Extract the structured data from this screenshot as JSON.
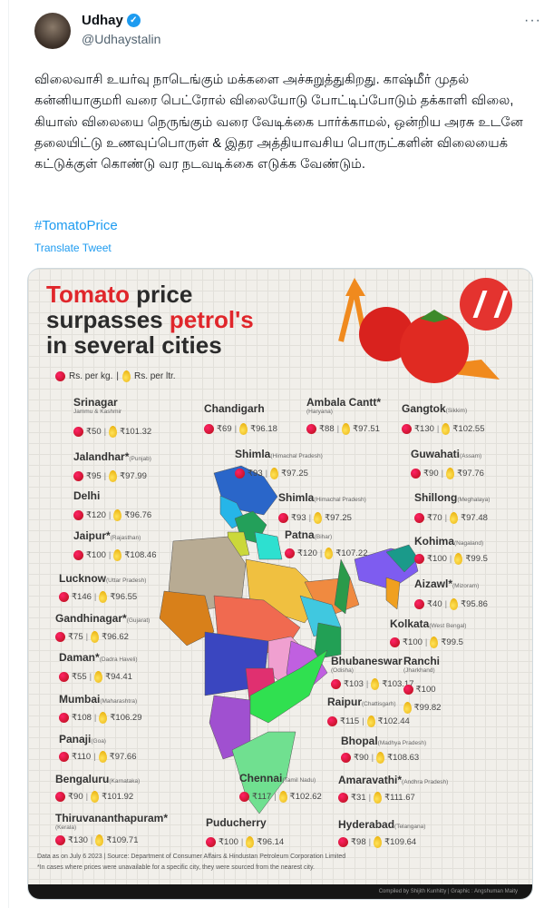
{
  "tweet": {
    "author_name": "Udhay",
    "handle": "@Udhaystalin",
    "text": "விலைவாசி உயர்வு நாடெங்கும் மக்களை அச்சுறுத்துகிறது. காஷ்மீர் முதல் கன்னியாகுமரி வரை பெட்ரோல் விலையோடு போட்டிப்போடும் தக்காளி விலை, கியாஸ் விலையை நெருங்கும் வரை வேடிக்கை பார்க்காமல், ஒன்றிய அரசு உடனே தலையிட்டு உணவுப்பொருள் & இதர அத்தியாவசிய பொருட்களின் விலையைக் கட்டுக்குள் கொண்டு வர நடவடிக்கை எடுக்க வேண்டும்.",
    "hashtag": "#TomatoPrice",
    "translate": "Translate Tweet",
    "more": "···"
  },
  "infographic": {
    "title_1_red": "Tomato",
    "title_1_rest": " price",
    "title_2": "surpasses ",
    "title_2_red": "petrol's",
    "title_3": "in several cities",
    "legend_tomato": "Rs. per kg.",
    "legend_sep": "|",
    "legend_petrol": "Rs. per ltr.",
    "cities": [
      {
        "name": "Srinagar",
        "region": "Jammu & Kashmir",
        "tomato": "₹50",
        "petrol": "₹101.32"
      },
      {
        "name": "Jalandhar*",
        "region": "(Punjab)",
        "tomato": "₹95",
        "petrol": "₹97.99"
      },
      {
        "name": "Delhi",
        "region": "",
        "tomato": "₹120",
        "petrol": "₹96.76"
      },
      {
        "name": "Jaipur*",
        "region": "(Rajasthan)",
        "tomato": "₹100",
        "petrol": "₹108.46"
      },
      {
        "name": "Lucknow",
        "region": "(Uttar Pradesh)",
        "tomato": "₹146",
        "petrol": "₹96.55"
      },
      {
        "name": "Gandhinagar*",
        "region": "(Gujarat)",
        "tomato": "₹75",
        "petrol": "₹96.62"
      },
      {
        "name": "Daman*",
        "region": "(Dadra Haveli)",
        "tomato": "₹55",
        "petrol": "₹94.41"
      },
      {
        "name": "Mumbai",
        "region": "(Maharashtra)",
        "tomato": "₹108",
        "petrol": "₹106.29"
      },
      {
        "name": "Panaji",
        "region": "(Goa)",
        "tomato": "₹110",
        "petrol": "₹97.66"
      },
      {
        "name": "Bengaluru",
        "region": "(Karnataka)",
        "tomato": "₹90",
        "petrol": "₹101.92"
      },
      {
        "name": "Thiruvananthapuram*",
        "region": "(Kerala)",
        "tomato": "₹130",
        "petrol": "₹109.71"
      },
      {
        "name": "Chandigarh",
        "region": "",
        "tomato": "₹69",
        "petrol": "₹96.18"
      },
      {
        "name": "Ambala Cantt*",
        "region": "(Haryana)",
        "tomato": "₹88",
        "petrol": "₹97.51"
      },
      {
        "name": "Shimla",
        "region": "(Himachal Pradesh)",
        "tomato": "₹93",
        "petrol": "₹97.25"
      },
      {
        "name": "Shimla",
        "region": "(Himachal Pradesh)",
        "tomato": "₹93",
        "petrol": "₹97.25"
      },
      {
        "name": "Patna",
        "region": "(Bihar)",
        "tomato": "₹120",
        "petrol": "₹107.22"
      },
      {
        "name": "Gangtok",
        "region": "(Sikkim)",
        "tomato": "₹130",
        "petrol": "₹102.55"
      },
      {
        "name": "Guwahati",
        "region": "(Assam)",
        "tomato": "₹90",
        "petrol": "₹97.76"
      },
      {
        "name": "Shillong",
        "region": "(Meghalaya)",
        "tomato": "₹70",
        "petrol": "₹97.48"
      },
      {
        "name": "Kohima",
        "region": "(Nagaland)",
        "tomato": "₹100",
        "petrol": "₹99.5"
      },
      {
        "name": "Aizawl*",
        "region": "(Mizoram)",
        "tomato": "₹40",
        "petrol": "₹95.86"
      },
      {
        "name": "Kolkata",
        "region": "(West Bengal)",
        "tomato": "₹100",
        "petrol": "₹99.5"
      },
      {
        "name": "Bhubaneswar",
        "region": "(Odisha)",
        "tomato": "₹103",
        "petrol": "₹103.17"
      },
      {
        "name": "Ranchi",
        "region": "(Jharkhand)",
        "tomato": "₹100",
        "petrol": "₹99.82"
      },
      {
        "name": "Raipur",
        "region": "(Chattisgarh)",
        "tomato": "₹115",
        "petrol": "₹102.44"
      },
      {
        "name": "Bhopal",
        "region": "(Madhya Pradesh)",
        "tomato": "₹90",
        "petrol": "₹108.63"
      },
      {
        "name": "Amaravathi*",
        "region": "(Andhra Pradesh)",
        "tomato": "₹31",
        "petrol": "₹111.67"
      },
      {
        "name": "Chennai",
        "region": "(Tamil Nadu)",
        "tomato": "₹117",
        "petrol": "₹102.62"
      },
      {
        "name": "Puducherry",
        "region": "",
        "tomato": "₹100",
        "petrol": "₹96.14"
      },
      {
        "name": "Hyderabad",
        "region": "(Telangana)",
        "tomato": "₹98",
        "petrol": "₹109.64"
      }
    ],
    "footnote_1": "Data as on July 6 2023 | Source: Department of Consumer Affairs & Hindustan Petroleum Corporation Limited",
    "footnote_2": "*In cases where prices were unavailable for a specific city, they were sourced from the nearest city.",
    "credits": "Compiled by Shijith Kunhitty | Graphic : Angshuman Maity",
    "colors": {
      "accent_red": "#e0262b",
      "link": "#1d9bf0"
    }
  }
}
